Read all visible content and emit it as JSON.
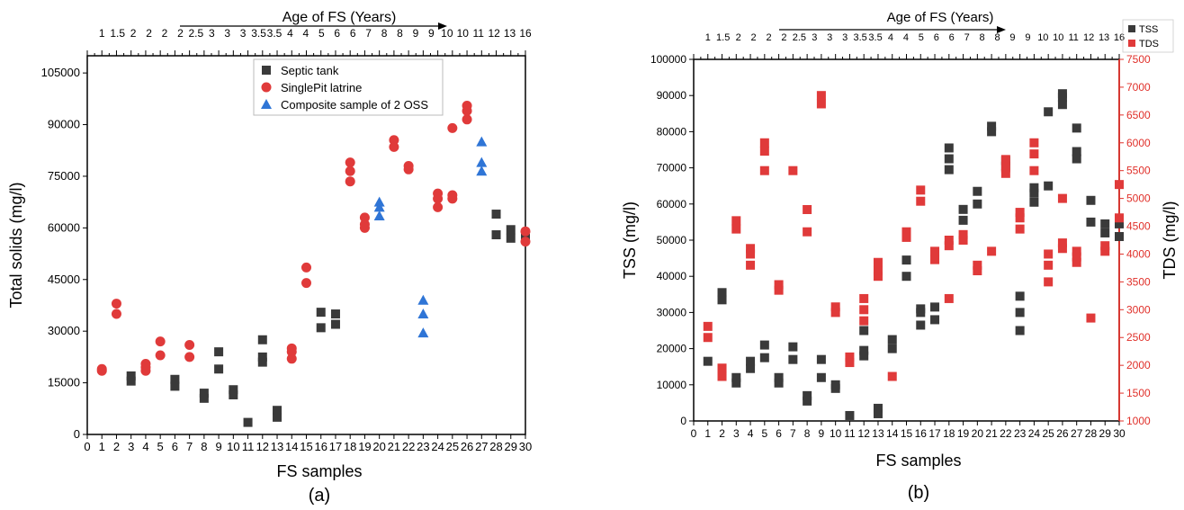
{
  "colors": {
    "axis": "#000000",
    "septic": "#3a3a3a",
    "pit": "#e03a3a",
    "composite": "#2f75d6",
    "tss": "#3a3a3a",
    "tds": "#e03a3a",
    "tds_axis": "#e0302a"
  },
  "chart_data": [
    {
      "type": "scatter",
      "panel_label": "(a)",
      "xlabel": "FS samples",
      "ylabel": "Total solids (mg/l)",
      "top_axis_label": "Age of FS (Years)",
      "xlim": [
        0,
        30
      ],
      "ylim": [
        0,
        110000
      ],
      "x_tick_labels": [
        "0",
        "1",
        "2",
        "3",
        "4",
        "5",
        "6",
        "7",
        "8",
        "9",
        "10",
        "11",
        "12",
        "13",
        "14",
        "15",
        "16",
        "17",
        "18",
        "19",
        "20",
        "21",
        "22",
        "23",
        "24",
        "25",
        "26",
        "27",
        "28",
        "29",
        "30"
      ],
      "top_tick_labels": [
        "1",
        "1.5",
        "2",
        "2",
        "2",
        "2",
        "2.5",
        "3",
        "3",
        "3",
        "3.5",
        "3.5",
        "4",
        "4",
        "5",
        "6",
        "6",
        "7",
        "8",
        "8",
        "9",
        "9",
        "10",
        "10",
        "11",
        "12",
        "13",
        "16"
      ],
      "y_ticks": [
        0,
        15000,
        30000,
        45000,
        60000,
        75000,
        90000,
        105000
      ],
      "legend": [
        "Septic tank",
        "SinglePit latrine",
        "Composite sample of 2 OSS"
      ],
      "series": [
        {
          "name": "Septic tank",
          "marker": "square",
          "points": [
            [
              3,
              15500
            ],
            [
              3,
              17000
            ],
            [
              6,
              14000
            ],
            [
              6,
              16000
            ],
            [
              8,
              10500
            ],
            [
              8,
              12000
            ],
            [
              9,
              19000
            ],
            [
              9,
              24000
            ],
            [
              10,
              11500
            ],
            [
              10,
              13000
            ],
            [
              11,
              3500
            ],
            [
              12,
              21000
            ],
            [
              12,
              22500
            ],
            [
              12,
              27500
            ],
            [
              13,
              5000
            ],
            [
              13,
              7000
            ],
            [
              16,
              31000
            ],
            [
              16,
              35500
            ],
            [
              17,
              32000
            ],
            [
              17,
              35000
            ],
            [
              28,
              58000
            ],
            [
              28,
              64000
            ],
            [
              29,
              57000
            ],
            [
              29,
              59500
            ],
            [
              30,
              57000
            ]
          ]
        },
        {
          "name": "SinglePit latrine",
          "marker": "circle",
          "points": [
            [
              1,
              18500
            ],
            [
              1,
              19000
            ],
            [
              2,
              35000
            ],
            [
              2,
              38000
            ],
            [
              4,
              18500
            ],
            [
              4,
              19500
            ],
            [
              4,
              20500
            ],
            [
              5,
              23000
            ],
            [
              5,
              27000
            ],
            [
              7,
              22500
            ],
            [
              7,
              26000
            ],
            [
              14,
              22000
            ],
            [
              14,
              24000
            ],
            [
              14,
              25000
            ],
            [
              15,
              44000
            ],
            [
              15,
              48500
            ],
            [
              18,
              73500
            ],
            [
              18,
              76500
            ],
            [
              18,
              79000
            ],
            [
              19,
              60000
            ],
            [
              19,
              61000
            ],
            [
              19,
              63000
            ],
            [
              21,
              83500
            ],
            [
              21,
              85500
            ],
            [
              22,
              77000
            ],
            [
              22,
              78000
            ],
            [
              24,
              66000
            ],
            [
              24,
              68500
            ],
            [
              24,
              70000
            ],
            [
              25,
              68500
            ],
            [
              25,
              69500
            ],
            [
              25,
              89000
            ],
            [
              26,
              91500
            ],
            [
              26,
              94000
            ],
            [
              26,
              95500
            ],
            [
              30,
              56000
            ],
            [
              30,
              59000
            ]
          ]
        },
        {
          "name": "Composite sample of 2 OSS",
          "marker": "triangle",
          "points": [
            [
              20,
              63500
            ],
            [
              20,
              66000
            ],
            [
              20,
              67500
            ],
            [
              23,
              29500
            ],
            [
              23,
              35000
            ],
            [
              23,
              39000
            ],
            [
              27,
              76500
            ],
            [
              27,
              79000
            ],
            [
              27,
              85000
            ]
          ]
        }
      ]
    },
    {
      "type": "scatter",
      "panel_label": "(b)",
      "xlabel": "FS samples",
      "ylabel": "TSS (mg/l)",
      "y2label": "TDS (mg/l)",
      "top_axis_label": "Age of FS (Years)",
      "xlim": [
        0,
        30
      ],
      "ylim": [
        0,
        100000
      ],
      "y2lim": [
        1000,
        7500
      ],
      "x_tick_labels": [
        "0",
        "1",
        "2",
        "3",
        "4",
        "5",
        "6",
        "7",
        "8",
        "9",
        "10",
        "11",
        "12",
        "13",
        "14",
        "15",
        "16",
        "17",
        "18",
        "19",
        "20",
        "21",
        "22",
        "23",
        "24",
        "25",
        "26",
        "27",
        "28",
        "29",
        "30"
      ],
      "top_tick_labels": [
        "1",
        "1.5",
        "2",
        "2",
        "2",
        "2",
        "2.5",
        "3",
        "3",
        "3",
        "3.5",
        "3.5",
        "4",
        "4",
        "5",
        "6",
        "6",
        "7",
        "8",
        "8",
        "9",
        "9",
        "10",
        "10",
        "11",
        "12",
        "13",
        "16"
      ],
      "y_ticks": [
        0,
        10000,
        20000,
        30000,
        40000,
        50000,
        60000,
        70000,
        80000,
        90000,
        100000
      ],
      "y2_ticks": [
        1000,
        1500,
        2000,
        2500,
        3000,
        3500,
        4000,
        4500,
        5000,
        5500,
        6000,
        6500,
        7000,
        7500
      ],
      "legend": [
        "TSS",
        "TDS"
      ],
      "series": [
        {
          "name": "TSS",
          "marker": "square",
          "axis": "left",
          "points": [
            [
              1,
              16500
            ],
            [
              2,
              33500
            ],
            [
              2,
              35500
            ],
            [
              3,
              10500
            ],
            [
              3,
              12000
            ],
            [
              4,
              14500
            ],
            [
              4,
              16500
            ],
            [
              5,
              17500
            ],
            [
              5,
              21000
            ],
            [
              6,
              10500
            ],
            [
              6,
              12000
            ],
            [
              7,
              17000
            ],
            [
              7,
              20500
            ],
            [
              8,
              5500
            ],
            [
              8,
              7000
            ],
            [
              9,
              12000
            ],
            [
              9,
              17000
            ],
            [
              10,
              9000
            ],
            [
              10,
              10000
            ],
            [
              11,
              1500
            ],
            [
              12,
              18000
            ],
            [
              12,
              19500
            ],
            [
              12,
              25000
            ],
            [
              13,
              2000
            ],
            [
              13,
              3500
            ],
            [
              14,
              20000
            ],
            [
              14,
              22500
            ],
            [
              15,
              40000
            ],
            [
              15,
              44500
            ],
            [
              16,
              26500
            ],
            [
              16,
              30000
            ],
            [
              16,
              31000
            ],
            [
              17,
              28000
            ],
            [
              17,
              31500
            ],
            [
              18,
              69500
            ],
            [
              18,
              72500
            ],
            [
              18,
              75500
            ],
            [
              19,
              55500
            ],
            [
              19,
              58500
            ],
            [
              20,
              60000
            ],
            [
              20,
              63500
            ],
            [
              21,
              80000
            ],
            [
              21,
              81500
            ],
            [
              22,
              70500
            ],
            [
              22,
              72000
            ],
            [
              23,
              25000
            ],
            [
              23,
              30000
            ],
            [
              23,
              34500
            ],
            [
              24,
              60500
            ],
            [
              24,
              63000
            ],
            [
              24,
              64500
            ],
            [
              25,
              65000
            ],
            [
              25,
              85500
            ],
            [
              26,
              87500
            ],
            [
              26,
              89500
            ],
            [
              26,
              90500
            ],
            [
              27,
              72500
            ],
            [
              27,
              74500
            ],
            [
              27,
              81000
            ],
            [
              28,
              55000
            ],
            [
              28,
              61000
            ],
            [
              29,
              52000
            ],
            [
              29,
              54500
            ],
            [
              30,
              51000
            ],
            [
              30,
              54500
            ]
          ]
        },
        {
          "name": "TDS",
          "marker": "square",
          "axis": "right",
          "points": [
            [
              1,
              2500
            ],
            [
              1,
              2700
            ],
            [
              2,
              1800
            ],
            [
              2,
              1950
            ],
            [
              3,
              4450
            ],
            [
              3,
              4600
            ],
            [
              4,
              3800
            ],
            [
              4,
              4000
            ],
            [
              4,
              4100
            ],
            [
              5,
              5500
            ],
            [
              5,
              5850
            ],
            [
              5,
              6000
            ],
            [
              6,
              3350
            ],
            [
              6,
              3450
            ],
            [
              7,
              5500
            ],
            [
              8,
              4400
            ],
            [
              8,
              4800
            ],
            [
              9,
              6700
            ],
            [
              9,
              6850
            ],
            [
              10,
              2950
            ],
            [
              10,
              3050
            ],
            [
              11,
              2050
            ],
            [
              11,
              2150
            ],
            [
              12,
              2800
            ],
            [
              12,
              3000
            ],
            [
              12,
              3200
            ],
            [
              13,
              3600
            ],
            [
              13,
              3700
            ],
            [
              13,
              3850
            ],
            [
              14,
              1800
            ],
            [
              15,
              4300
            ],
            [
              15,
              4400
            ],
            [
              16,
              4950
            ],
            [
              16,
              5150
            ],
            [
              17,
              3900
            ],
            [
              17,
              4050
            ],
            [
              18,
              3200
            ],
            [
              18,
              4150
            ],
            [
              18,
              4250
            ],
            [
              19,
              4250
            ],
            [
              19,
              4350
            ],
            [
              20,
              3700
            ],
            [
              20,
              3800
            ],
            [
              21,
              4050
            ],
            [
              22,
              5450
            ],
            [
              22,
              5550
            ],
            [
              22,
              5700
            ],
            [
              23,
              4450
            ],
            [
              23,
              4650
            ],
            [
              23,
              4750
            ],
            [
              24,
              5500
            ],
            [
              24,
              5800
            ],
            [
              24,
              6000
            ],
            [
              25,
              3500
            ],
            [
              25,
              3800
            ],
            [
              25,
              4000
            ],
            [
              26,
              4100
            ],
            [
              26,
              4200
            ],
            [
              26,
              5000
            ],
            [
              27,
              3850
            ],
            [
              27,
              3950
            ],
            [
              27,
              4050
            ],
            [
              28,
              2850
            ],
            [
              29,
              4050
            ],
            [
              29,
              4150
            ],
            [
              30,
              4650
            ],
            [
              30,
              5250
            ]
          ]
        }
      ]
    }
  ]
}
